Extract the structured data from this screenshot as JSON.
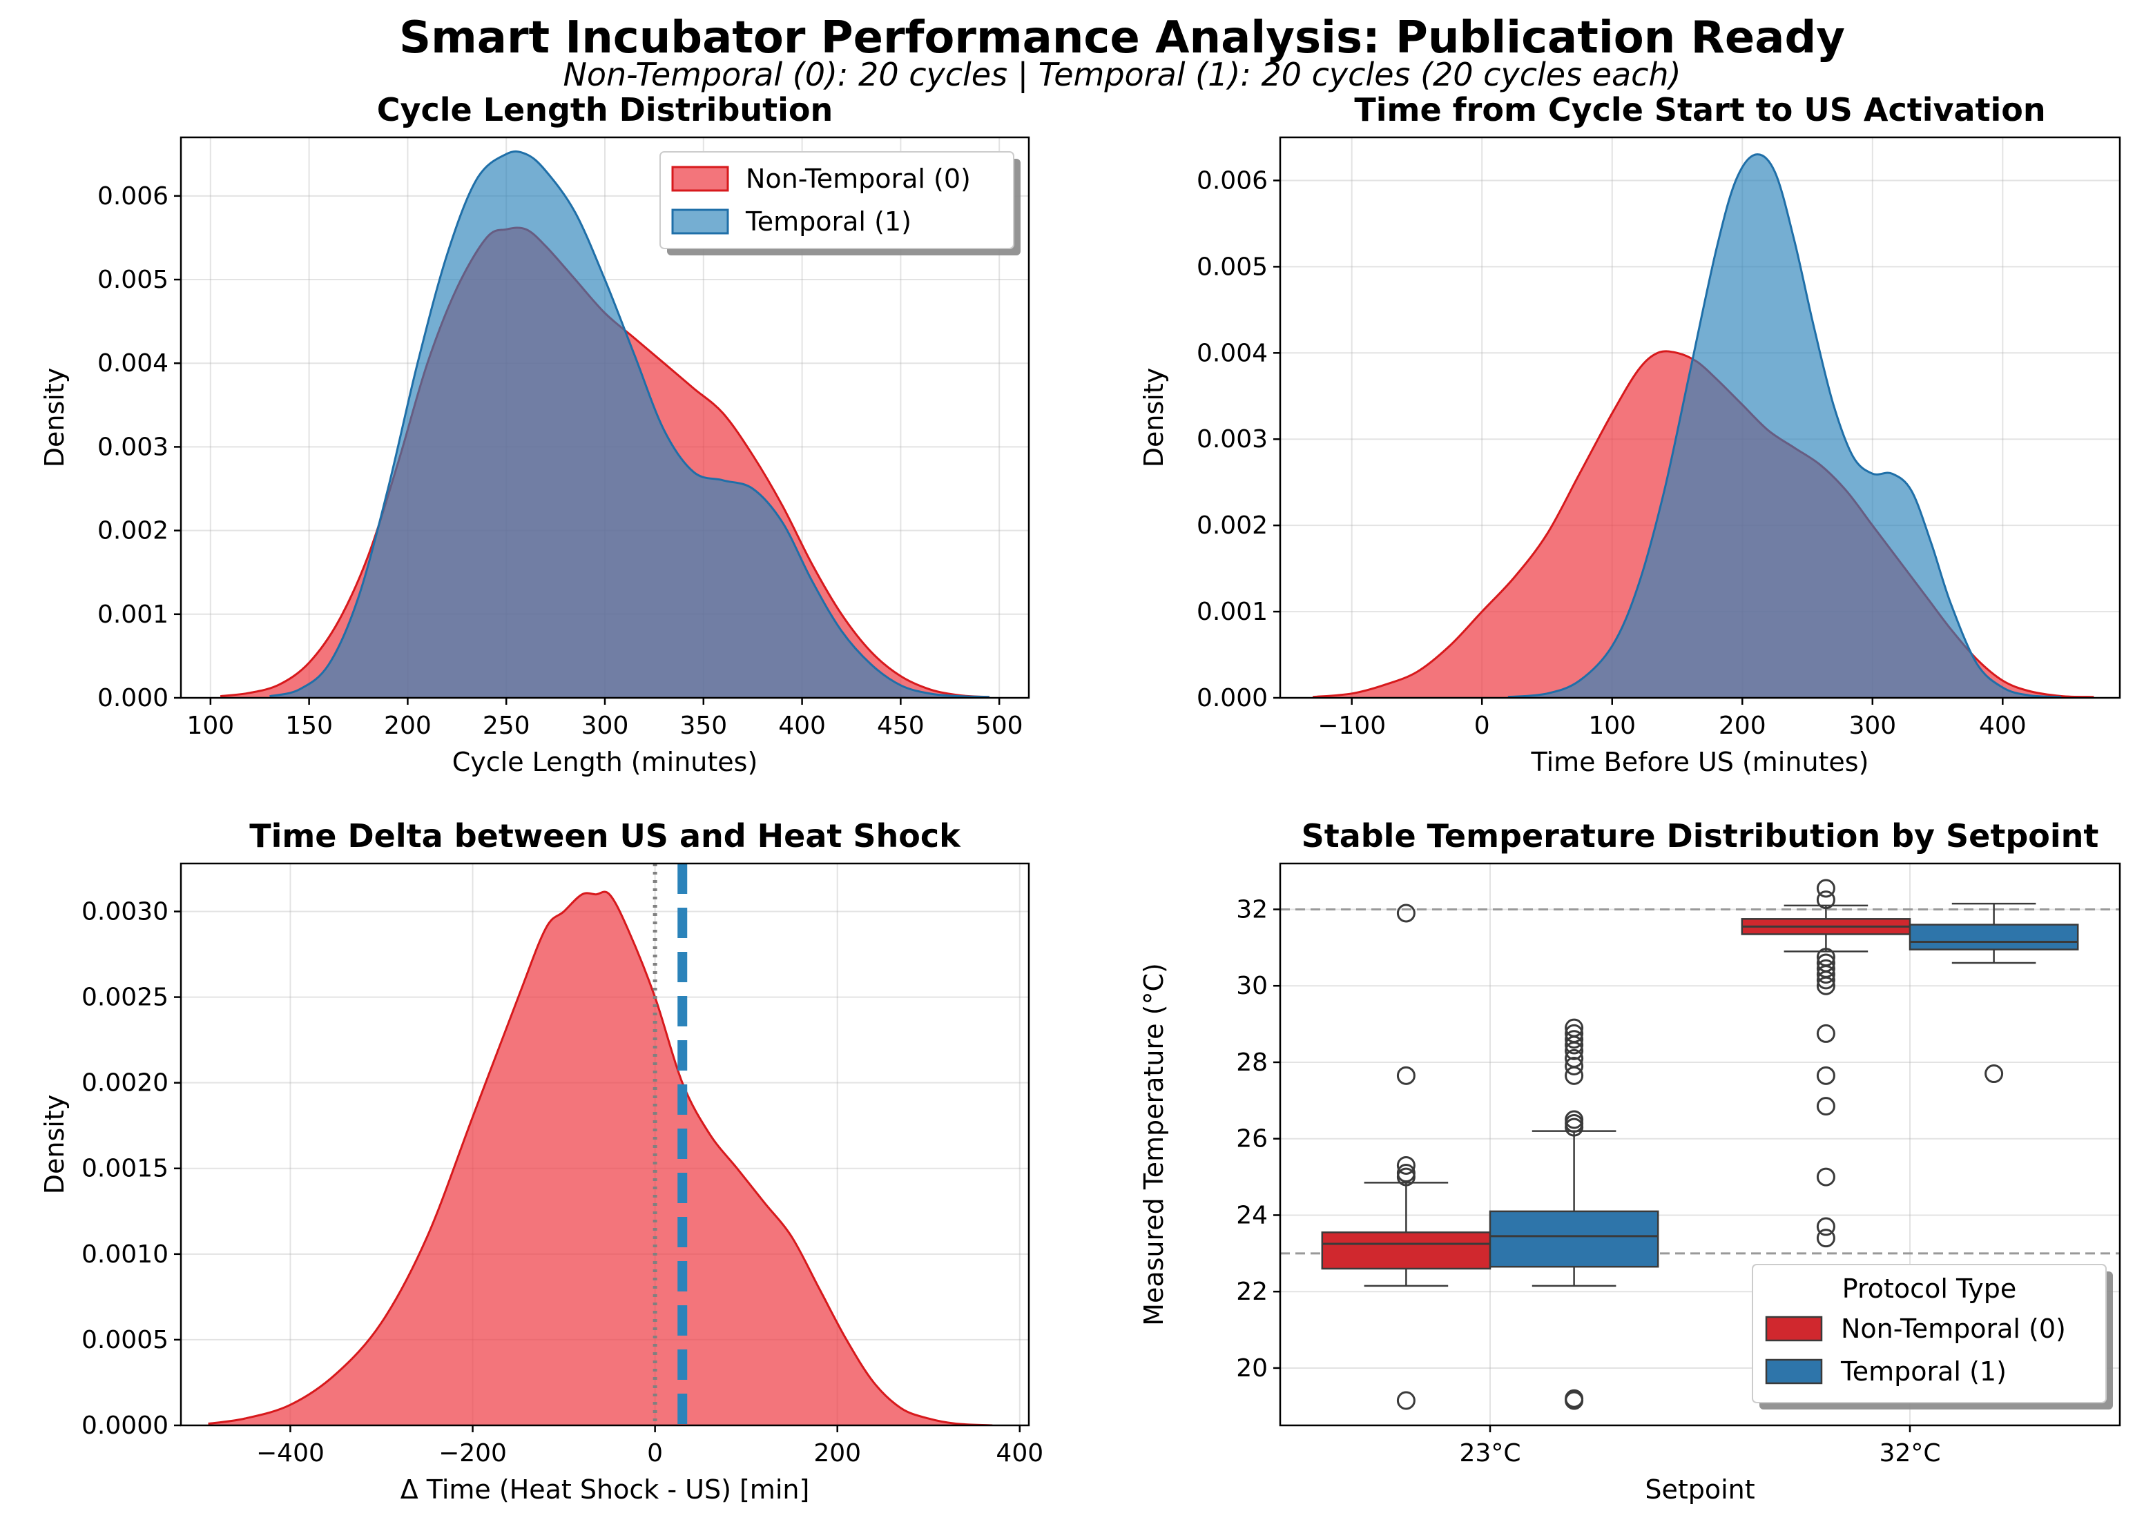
{
  "figure": {
    "title": "Smart Incubator Performance Analysis: Publication Ready",
    "subtitle": "Non-Temporal (0): 20 cycles  |  Temporal (1): 20 cycles (20 cycles each)"
  },
  "colors": {
    "non_temporal_fill": "#ee3a43",
    "non_temporal_line": "#d7191c",
    "temporal_fill": "#2b83ba",
    "temporal_line": "#1f6fa8",
    "overlap": "#73739a",
    "box_red": "#d0282e",
    "box_blue": "#2e75aa"
  },
  "chart_data": [
    {
      "id": "cycle_length",
      "type": "area",
      "title": "Cycle Length Distribution",
      "xlabel": "Cycle Length (minutes)",
      "ylabel": "Density",
      "xlim": [
        85,
        515
      ],
      "ylim": [
        0,
        0.0067
      ],
      "xticks": [
        100,
        150,
        200,
        250,
        300,
        350,
        400,
        450,
        500
      ],
      "yticks": [
        0.0,
        0.001,
        0.002,
        0.003,
        0.004,
        0.005,
        0.006
      ],
      "ytick_decimals": 3,
      "legend": [
        "Non-Temporal (0)",
        "Temporal (1)"
      ],
      "legend_position": "top-right",
      "grid": true,
      "series": [
        {
          "name": "Non-Temporal (0)",
          "x": [
            105,
            120,
            135,
            150,
            165,
            180,
            195,
            210,
            225,
            240,
            250,
            260,
            270,
            285,
            300,
            315,
            330,
            345,
            360,
            375,
            390,
            405,
            420,
            435,
            450,
            465,
            480,
            495
          ],
          "y": [
            2e-05,
            6e-05,
            0.00016,
            0.00042,
            0.00092,
            0.0017,
            0.0028,
            0.004,
            0.0049,
            0.0055,
            0.0056,
            0.0056,
            0.0054,
            0.005,
            0.0046,
            0.0043,
            0.004,
            0.0037,
            0.0034,
            0.0029,
            0.0023,
            0.0016,
            0.001,
            0.00055,
            0.00026,
            0.0001,
            3e-05,
            1e-05
          ]
        },
        {
          "name": "Temporal (1)",
          "x": [
            130,
            145,
            160,
            175,
            190,
            205,
            220,
            235,
            250,
            260,
            270,
            285,
            300,
            315,
            330,
            345,
            360,
            375,
            390,
            405,
            420,
            435,
            450,
            465,
            480,
            495
          ],
          "y": [
            2e-05,
            0.0001,
            0.0004,
            0.0012,
            0.0025,
            0.004,
            0.0053,
            0.0062,
            0.0065,
            0.0065,
            0.0063,
            0.0058,
            0.005,
            0.0041,
            0.0032,
            0.0027,
            0.0026,
            0.0025,
            0.0021,
            0.0014,
            0.0008,
            0.0004,
            0.00015,
            5e-05,
            2e-05,
            1e-05
          ]
        }
      ]
    },
    {
      "id": "time_to_us",
      "type": "area",
      "title": "Time from Cycle Start to US Activation",
      "xlabel": "Time Before US (minutes)",
      "ylabel": "Density",
      "xlim": [
        -155,
        490
      ],
      "ylim": [
        0,
        0.0065
      ],
      "xticks": [
        -100,
        0,
        100,
        200,
        300,
        400
      ],
      "yticks": [
        0.0,
        0.001,
        0.002,
        0.003,
        0.004,
        0.005,
        0.006
      ],
      "ytick_decimals": 3,
      "grid": true,
      "series": [
        {
          "name": "Non-Temporal (0)",
          "x": [
            -130,
            -100,
            -75,
            -50,
            -25,
            0,
            25,
            50,
            75,
            100,
            120,
            135,
            150,
            165,
            180,
            200,
            220,
            240,
            260,
            280,
            300,
            320,
            340,
            360,
            380,
            400,
            420,
            445,
            470
          ],
          "y": [
            1e-05,
            5e-05,
            0.00015,
            0.0003,
            0.0006,
            0.001,
            0.0014,
            0.0019,
            0.0026,
            0.0033,
            0.0038,
            0.004,
            0.004,
            0.0039,
            0.0037,
            0.0034,
            0.0031,
            0.0029,
            0.0027,
            0.0024,
            0.002,
            0.0016,
            0.0012,
            0.0008,
            0.00045,
            0.0002,
            8e-05,
            2e-05,
            1e-05
          ]
        },
        {
          "name": "Temporal (1)",
          "x": [
            20,
            50,
            75,
            100,
            120,
            140,
            160,
            180,
            195,
            210,
            225,
            240,
            255,
            270,
            285,
            300,
            315,
            330,
            345,
            360,
            380,
            400,
            420,
            445
          ],
          "y": [
            1e-05,
            5e-05,
            0.0002,
            0.0006,
            0.0013,
            0.0024,
            0.0038,
            0.0052,
            0.006,
            0.0063,
            0.0061,
            0.0053,
            0.0043,
            0.0034,
            0.0028,
            0.0026,
            0.0026,
            0.0024,
            0.0018,
            0.0011,
            0.0004,
            0.00012,
            3e-05,
            1e-05
          ]
        }
      ]
    },
    {
      "id": "time_delta",
      "type": "area",
      "title": "Time Delta between US and Heat Shock",
      "xlabel": "Δ Time (Heat Shock - US) [min]",
      "ylabel": "Density",
      "xlim": [
        -520,
        410
      ],
      "ylim": [
        0,
        0.00328
      ],
      "xticks": [
        -400,
        -200,
        0,
        200,
        400
      ],
      "yticks": [
        0.0,
        0.0005,
        0.001,
        0.0015,
        0.002,
        0.0025,
        0.003
      ],
      "ytick_decimals": 4,
      "grid": true,
      "vlines": [
        {
          "x": 0,
          "style": "dotted",
          "color": "#808080"
        },
        {
          "x": 30,
          "style": "dashed",
          "color": "#2b83ba"
        }
      ],
      "series": [
        {
          "name": "Non-Temporal (0)",
          "x": [
            -490,
            -450,
            -400,
            -350,
            -300,
            -250,
            -200,
            -150,
            -120,
            -100,
            -80,
            -65,
            -50,
            -30,
            0,
            30,
            60,
            90,
            120,
            150,
            180,
            210,
            240,
            270,
            300,
            330,
            370
          ],
          "y": [
            1e-05,
            4e-05,
            0.00012,
            0.0003,
            0.0006,
            0.0011,
            0.0018,
            0.0025,
            0.0029,
            0.003,
            0.0031,
            0.0031,
            0.0031,
            0.0029,
            0.0025,
            0.002,
            0.0017,
            0.0015,
            0.0013,
            0.0011,
            0.0008,
            0.0005,
            0.00025,
            0.0001,
            4e-05,
            1e-05,
            0.0
          ]
        }
      ]
    },
    {
      "id": "stable_temp",
      "type": "box",
      "title": "Stable Temperature Distribution by Setpoint",
      "xlabel": "Setpoint",
      "ylabel": "Measured Temperature (°C)",
      "ylim": [
        18.5,
        33.2
      ],
      "yticks": [
        20,
        22,
        24,
        26,
        28,
        30,
        32
      ],
      "categories": [
        "23°C",
        "32°C"
      ],
      "hlines": [
        23,
        32
      ],
      "grid": true,
      "legend_title": "Protocol Type",
      "legend": [
        "Non-Temporal (0)",
        "Temporal (1)"
      ],
      "legend_position": "lower-right",
      "boxes": [
        {
          "category": "23°C",
          "series": "Non-Temporal (0)",
          "whislo": 22.15,
          "q1": 22.6,
          "med": 23.25,
          "q3": 23.55,
          "whishi": 24.85,
          "outliers": [
            25.0,
            25.1,
            25.3,
            27.65,
            31.9,
            19.15
          ]
        },
        {
          "category": "23°C",
          "series": "Temporal (1)",
          "whislo": 22.15,
          "q1": 22.65,
          "med": 23.45,
          "q3": 24.1,
          "whishi": 26.2,
          "outliers": [
            26.3,
            26.4,
            26.5,
            27.65,
            27.9,
            28.1,
            28.3,
            28.45,
            28.6,
            28.75,
            28.9,
            19.15,
            19.2
          ]
        },
        {
          "category": "32°C",
          "series": "Non-Temporal (0)",
          "whislo": 30.9,
          "q1": 31.35,
          "med": 31.55,
          "q3": 31.75,
          "whishi": 32.1,
          "outliers": [
            32.25,
            32.55,
            30.75,
            30.6,
            30.45,
            30.3,
            30.15,
            30.0,
            28.75,
            27.65,
            26.85,
            25.0,
            23.7,
            23.4
          ]
        },
        {
          "category": "32°C",
          "series": "Temporal (1)",
          "whislo": 30.6,
          "q1": 30.95,
          "med": 31.15,
          "q3": 31.6,
          "whishi": 32.15,
          "outliers": [
            27.7
          ]
        }
      ]
    }
  ]
}
